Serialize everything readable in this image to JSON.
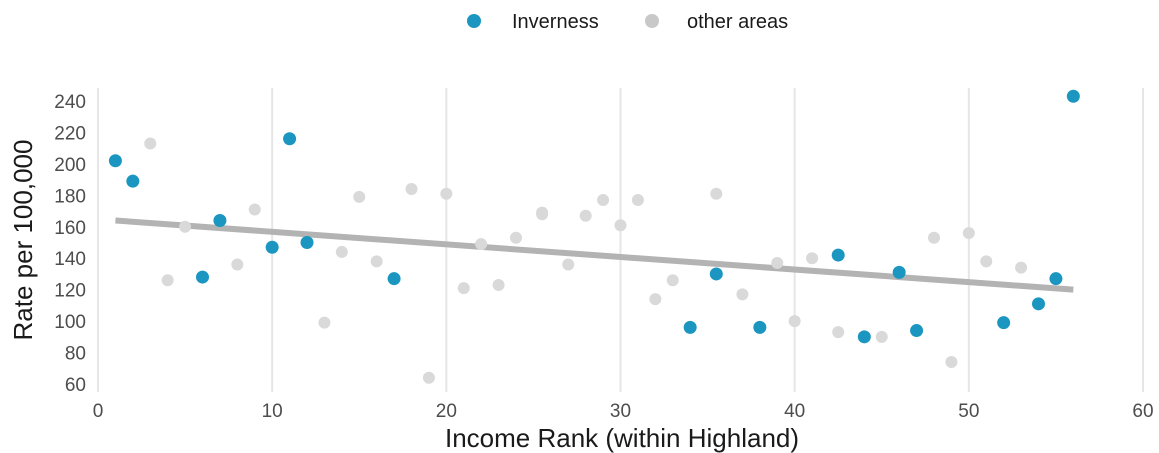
{
  "chart_data": {
    "type": "scatter",
    "xlabel": "Income Rank (within Highland)",
    "ylabel": "Rate per 100,000",
    "xlim": [
      0,
      60
    ],
    "ylim": [
      60,
      245
    ],
    "xticks": [
      0,
      10,
      20,
      30,
      40,
      50,
      60
    ],
    "yticks": [
      60,
      80,
      100,
      120,
      140,
      160,
      180,
      200,
      220,
      240
    ],
    "grid": "vertical major gridlines",
    "legend_position": "top-center",
    "series": [
      {
        "name": "Inverness",
        "color": "#1a96c0",
        "points": [
          [
            1,
            202
          ],
          [
            2,
            189
          ],
          [
            6,
            128
          ],
          [
            7,
            164
          ],
          [
            10,
            147
          ],
          [
            11,
            216
          ],
          [
            12,
            150
          ],
          [
            17,
            127
          ],
          [
            34,
            96
          ],
          [
            35.5,
            130
          ],
          [
            38,
            96
          ],
          [
            42.5,
            142
          ],
          [
            44,
            90
          ],
          [
            46,
            131
          ],
          [
            47,
            94
          ],
          [
            52,
            99
          ],
          [
            54,
            111
          ],
          [
            55,
            127
          ],
          [
            56,
            243
          ]
        ]
      },
      {
        "name": "other areas",
        "color": "#d9d9d9",
        "points": [
          [
            3,
            213
          ],
          [
            4,
            126
          ],
          [
            5,
            160
          ],
          [
            8,
            136
          ],
          [
            9,
            171
          ],
          [
            13,
            99
          ],
          [
            14,
            144
          ],
          [
            15,
            179
          ],
          [
            16,
            138
          ],
          [
            18,
            184
          ],
          [
            19,
            64
          ],
          [
            20,
            181
          ],
          [
            21,
            121
          ],
          [
            22,
            149
          ],
          [
            23,
            123
          ],
          [
            24,
            153
          ],
          [
            25.5,
            169
          ],
          [
            25.5,
            168
          ],
          [
            27,
            136
          ],
          [
            28,
            167
          ],
          [
            29,
            177
          ],
          [
            30,
            161
          ],
          [
            31,
            177
          ],
          [
            32,
            114
          ],
          [
            33,
            126
          ],
          [
            35.5,
            181
          ],
          [
            37,
            117
          ],
          [
            39,
            137
          ],
          [
            40,
            100
          ],
          [
            41,
            140
          ],
          [
            42.5,
            93
          ],
          [
            45,
            90
          ],
          [
            48,
            153
          ],
          [
            49,
            74
          ],
          [
            50,
            156
          ],
          [
            51,
            138
          ],
          [
            53,
            134
          ]
        ]
      }
    ],
    "trendline": {
      "color": "#b3b3b3",
      "x": [
        1,
        56
      ],
      "y": [
        164,
        120
      ]
    }
  },
  "legend": {
    "items": [
      {
        "label": "Inverness",
        "color": "#1a96c0"
      },
      {
        "label": "other areas",
        "color": "#c8c8c8"
      }
    ]
  }
}
